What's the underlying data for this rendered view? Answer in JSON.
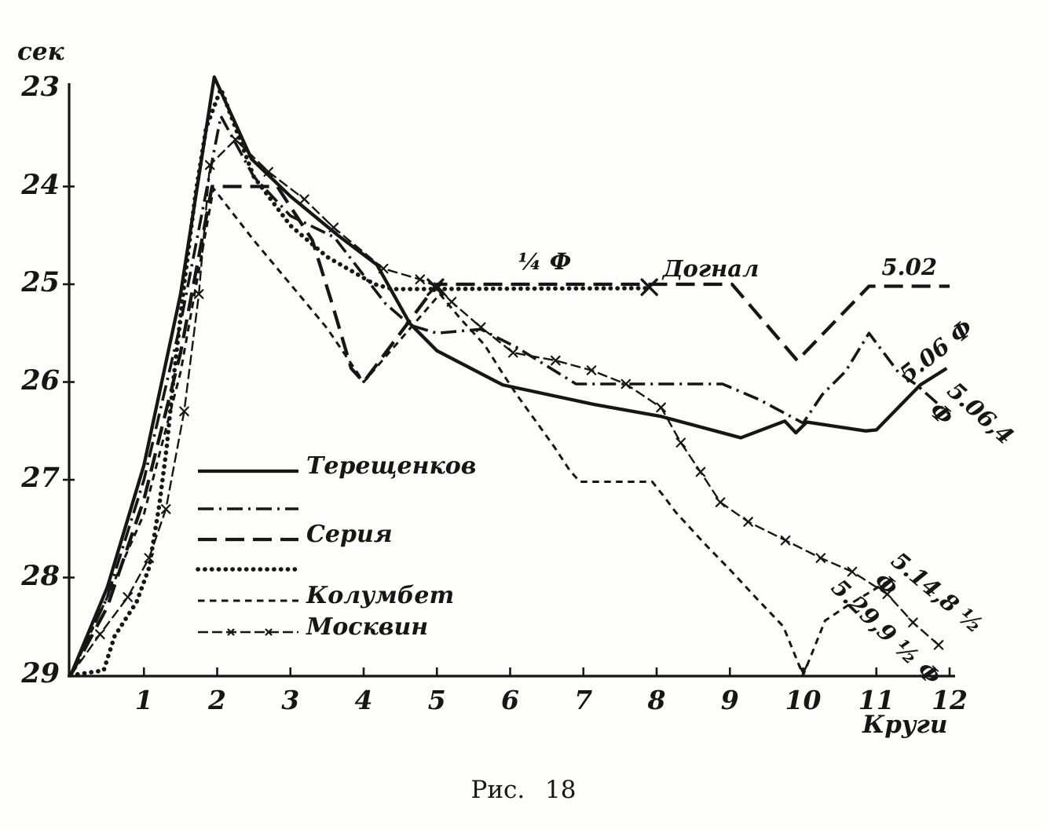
{
  "figure": {
    "unit_label": "сек",
    "x_axis_label": "Круги",
    "caption": "Рис. 18"
  },
  "legend": {
    "items": [
      {
        "label": "Терещенков"
      },
      {
        "label": ""
      },
      {
        "label": "Серия"
      },
      {
        "label": ""
      },
      {
        "label": "Колумбет"
      },
      {
        "label": "Москвин"
      }
    ]
  },
  "chart_data": {
    "type": "line",
    "title": "Рис. 18",
    "xlabel": "Круги",
    "ylabel": "сек",
    "x_range": [
      0,
      12.35
    ],
    "y_range": [
      23,
      29
    ],
    "y_inverted": true,
    "grid": false,
    "x_ticks": [
      1,
      2,
      3,
      4,
      5,
      6,
      7,
      8,
      9,
      10,
      11,
      12
    ],
    "y_ticks": [
      23,
      24,
      25,
      26,
      27,
      28,
      29
    ],
    "series": [
      {
        "key": "tereshchenkov",
        "name": "Терещенков",
        "line_style": "solid",
        "final_time_label": "5.06,4 Ф",
        "points": [
          [
            0,
            29
          ],
          [
            0.5,
            28.1
          ],
          [
            1,
            26.85
          ],
          [
            1.5,
            25.1
          ],
          [
            1.96,
            22.88
          ],
          [
            2.47,
            23.72
          ],
          [
            3,
            24.1
          ],
          [
            3.65,
            24.5
          ],
          [
            4.18,
            24.8
          ],
          [
            4.63,
            25.4
          ],
          [
            5,
            25.68
          ],
          [
            5.9,
            26.03
          ],
          [
            7.15,
            26.23
          ],
          [
            8.05,
            26.35
          ],
          [
            8.75,
            26.49
          ],
          [
            9.15,
            26.57
          ],
          [
            9.75,
            26.4
          ],
          [
            9.9,
            26.52
          ],
          [
            10.05,
            26.41
          ],
          [
            10.85,
            26.5
          ],
          [
            11,
            26.49
          ],
          [
            11.6,
            26.03
          ],
          [
            11.96,
            25.86
          ]
        ]
      },
      {
        "key": "dash_dot_rider",
        "name": "",
        "line_style": "dash-dot",
        "final_time_label": "5.06 Ф",
        "points": [
          [
            0,
            29
          ],
          [
            0.5,
            28.2
          ],
          [
            1,
            27.0
          ],
          [
            1.5,
            25.4
          ],
          [
            2.05,
            23.28
          ],
          [
            2.5,
            23.9
          ],
          [
            3,
            24.3
          ],
          [
            3.6,
            24.52
          ],
          [
            4.3,
            25.2
          ],
          [
            4.64,
            25.42
          ],
          [
            5,
            25.5
          ],
          [
            5.6,
            25.46
          ],
          [
            6.1,
            25.65
          ],
          [
            6.9,
            26.02
          ],
          [
            8.9,
            26.02
          ],
          [
            9.4,
            26.18
          ],
          [
            10,
            26.42
          ],
          [
            10.26,
            26.13
          ],
          [
            10.58,
            25.89
          ],
          [
            10.9,
            25.5
          ],
          [
            11.3,
            25.9
          ],
          [
            11.55,
            26.03
          ],
          [
            12,
            26.33
          ]
        ]
      },
      {
        "key": "seriya",
        "name": "Серия",
        "line_style": "long-dash",
        "final_time_label": "5.02",
        "points": [
          [
            0,
            29
          ],
          [
            0.5,
            28.3
          ],
          [
            1,
            27.2
          ],
          [
            1.5,
            25.7
          ],
          [
            1.93,
            24.0
          ],
          [
            2.82,
            24.0
          ],
          [
            3.3,
            24.55
          ],
          [
            3.57,
            25.2
          ],
          [
            3.83,
            25.86
          ],
          [
            4,
            26.0
          ],
          [
            5,
            25.0
          ],
          [
            9.03,
            25.0
          ],
          [
            9.92,
            25.78
          ],
          [
            10.9,
            25.02
          ],
          [
            12,
            25.02
          ]
        ]
      },
      {
        "key": "dotted_schedule",
        "name": "",
        "line_style": "dotted",
        "final_time_label": "",
        "points": [
          [
            0,
            29
          ],
          [
            0.45,
            28.95
          ],
          [
            0.6,
            28.6
          ],
          [
            0.9,
            28.25
          ],
          [
            1.07,
            27.9
          ],
          [
            1.21,
            27.26
          ],
          [
            1.31,
            26.67
          ],
          [
            1.4,
            26.0
          ],
          [
            1.55,
            25.0
          ],
          [
            1.7,
            24.1
          ],
          [
            1.85,
            23.4
          ],
          [
            2.05,
            23.0
          ],
          [
            2.5,
            23.9
          ],
          [
            3,
            24.4
          ],
          [
            3.5,
            24.72
          ],
          [
            4.15,
            25.0
          ],
          [
            4.4,
            25.05
          ],
          [
            7.9,
            25.04
          ]
        ]
      },
      {
        "key": "kolumbet",
        "name": "Колумбет",
        "line_style": "short-dash",
        "final_time_label": "5.29,9 ½ Ф",
        "points": [
          [
            0,
            29
          ],
          [
            0.5,
            28.2
          ],
          [
            1,
            27.35
          ],
          [
            1.5,
            25.9
          ],
          [
            1.95,
            24.02
          ],
          [
            2.5,
            24.55
          ],
          [
            3,
            25.0
          ],
          [
            3.5,
            25.45
          ],
          [
            4,
            26.0
          ],
          [
            5.04,
            25.1
          ],
          [
            5.33,
            25.36
          ],
          [
            5.65,
            25.62
          ],
          [
            5.87,
            25.88
          ],
          [
            6.08,
            26.12
          ],
          [
            6.35,
            26.4
          ],
          [
            6.6,
            26.66
          ],
          [
            6.81,
            26.9
          ],
          [
            6.95,
            27.02
          ],
          [
            7.94,
            27.02
          ],
          [
            8.1,
            27.17
          ],
          [
            8.26,
            27.33
          ],
          [
            8.65,
            27.65
          ],
          [
            9,
            27.92
          ],
          [
            9.36,
            28.21
          ],
          [
            9.73,
            28.5
          ],
          [
            10,
            29
          ],
          [
            10.3,
            28.44
          ],
          [
            10.6,
            28.29
          ],
          [
            11.2,
            28.02
          ]
        ]
      },
      {
        "key": "moskvin",
        "name": "Москвин",
        "line_style": "x-dash",
        "marker": "x",
        "final_time_label": "5.14,8 ½ Ф",
        "points": [
          [
            0,
            29
          ],
          [
            0.4,
            28.58
          ],
          [
            0.78,
            28.2
          ],
          [
            1.07,
            27.8
          ],
          [
            1.3,
            27.3
          ],
          [
            1.55,
            26.3
          ],
          [
            1.75,
            25.1
          ],
          [
            1.9,
            23.78
          ],
          [
            2.25,
            23.52
          ],
          [
            2.7,
            23.85
          ],
          [
            3.19,
            24.13
          ],
          [
            3.59,
            24.42
          ],
          [
            4.27,
            24.84
          ],
          [
            4.77,
            24.95
          ],
          [
            5.02,
            25.03
          ],
          [
            5.2,
            25.18
          ],
          [
            5.6,
            25.44
          ],
          [
            6.04,
            25.7
          ],
          [
            6.62,
            25.78
          ],
          [
            7.11,
            25.88
          ],
          [
            7.58,
            26.02
          ],
          [
            8.06,
            26.26
          ],
          [
            8.33,
            26.62
          ],
          [
            8.6,
            26.92
          ],
          [
            8.87,
            27.23
          ],
          [
            9.25,
            27.43
          ],
          [
            9.76,
            27.62
          ],
          [
            10.24,
            27.8
          ],
          [
            10.67,
            27.94
          ],
          [
            11.15,
            28.17
          ],
          [
            11.5,
            28.46
          ],
          [
            11.85,
            28.69
          ]
        ]
      }
    ],
    "annotations": [
      {
        "text": "¼ Ф",
        "lap": 6.47,
        "sec": 24.77,
        "rot": 0
      },
      {
        "text": "Догнал",
        "lap": 8.74,
        "sec": 24.84,
        "rot": 0
      },
      {
        "text": "5.02",
        "lap": 11.45,
        "sec": 24.82,
        "rot": 0
      },
      {
        "text": "5.06 Ф",
        "lap": 11.82,
        "sec": 25.68,
        "rot": -38
      },
      {
        "text": "5.06,4 Ф",
        "lap": 12.3,
        "sec": 26.42,
        "rot": 42
      },
      {
        "text": "5.14,8 ½ Ф",
        "lap": 11.74,
        "sec": 28.28,
        "rot": 40
      },
      {
        "text": "5.29,9 ½ Ф",
        "lap": 11.13,
        "sec": 28.56,
        "rot": 44
      }
    ],
    "cross_markers": [
      {
        "lap": 4.98,
        "sec": 25.03
      },
      {
        "lap": 7.9,
        "sec": 25.03
      }
    ],
    "arrow_marker": {
      "lap": 10,
      "sec": 29
    }
  }
}
